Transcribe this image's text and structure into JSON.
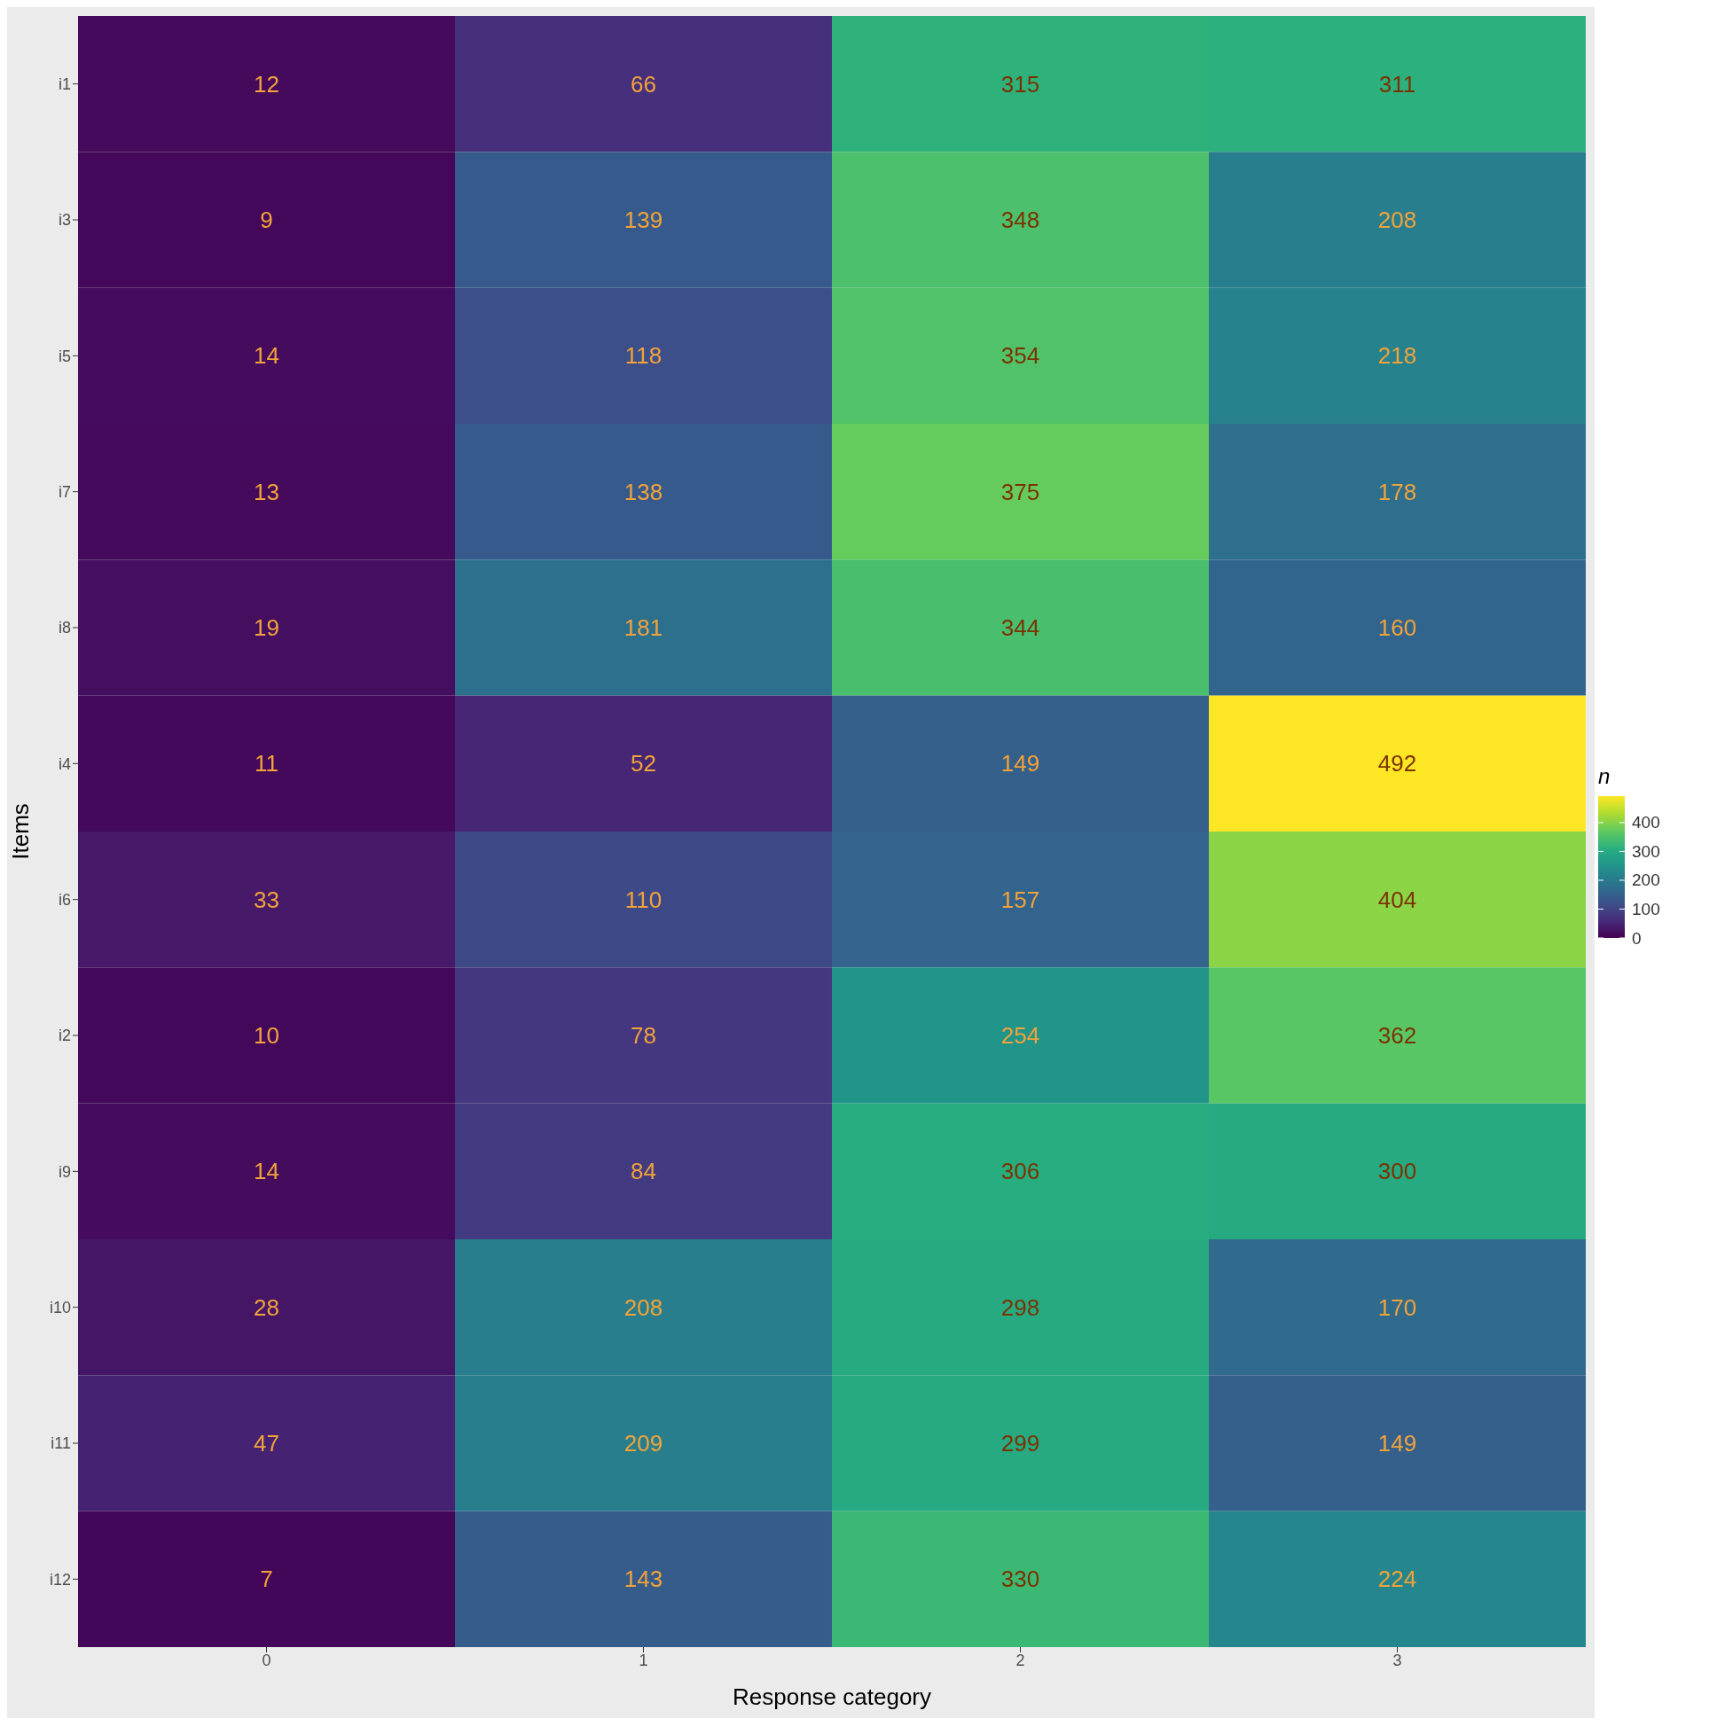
{
  "chart_data": {
    "type": "heatmap",
    "xlabel": "Response category",
    "ylabel": "Items",
    "clabel": "n",
    "categories": [
      "0",
      "1",
      "2",
      "3"
    ],
    "y_categories": [
      "i1",
      "i3",
      "i5",
      "i7",
      "i8",
      "i4",
      "i6",
      "i2",
      "i9",
      "i10",
      "i11",
      "i12"
    ],
    "cells": [
      [
        12,
        66,
        315,
        311
      ],
      [
        9,
        139,
        348,
        208
      ],
      [
        14,
        118,
        354,
        218
      ],
      [
        13,
        138,
        375,
        178
      ],
      [
        19,
        181,
        344,
        160
      ],
      [
        11,
        52,
        149,
        492
      ],
      [
        33,
        110,
        157,
        404
      ],
      [
        10,
        78,
        254,
        362
      ],
      [
        14,
        84,
        306,
        300
      ],
      [
        28,
        208,
        298,
        170
      ],
      [
        47,
        209,
        299,
        149
      ],
      [
        7,
        143,
        330,
        224
      ]
    ],
    "clim": [
      0,
      492
    ],
    "cticks": [
      0,
      100,
      200,
      300,
      400
    ],
    "data_labels": true
  }
}
